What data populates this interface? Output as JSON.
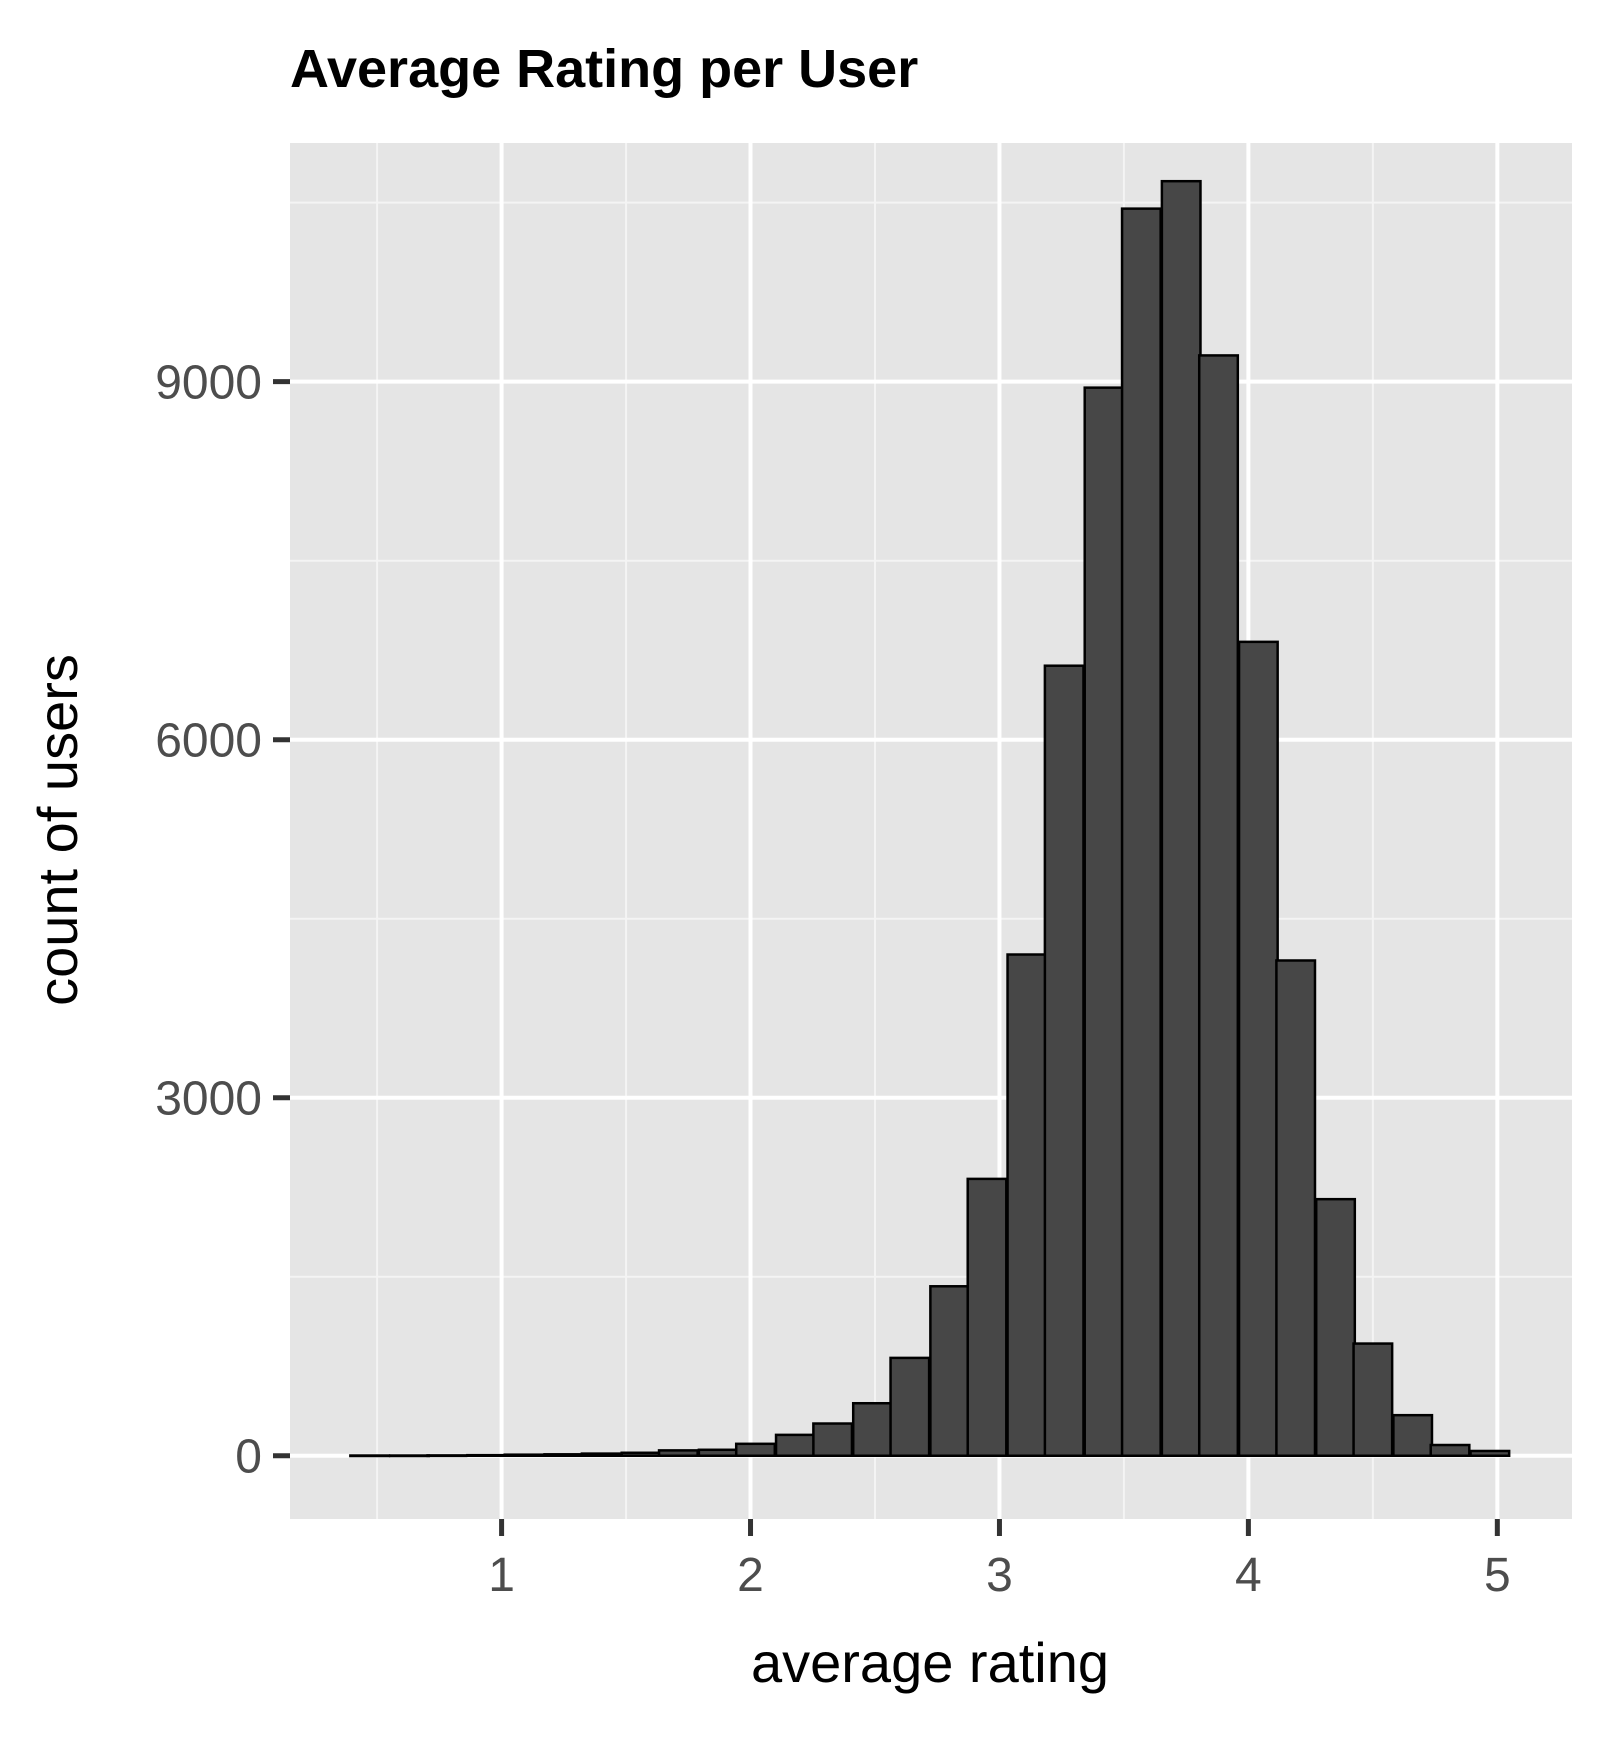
{
  "chart_data": {
    "type": "bar",
    "title": "Average Rating per User",
    "xlabel": "average rating",
    "ylabel": "count of users",
    "xlim": [
      0.15,
      5.3
    ],
    "ylim": [
      -530,
      11000
    ],
    "x_ticks": [
      1,
      2,
      3,
      4,
      5
    ],
    "x_tick_labels": [
      "1",
      "2",
      "3",
      "4",
      "5"
    ],
    "y_ticks": [
      0,
      3000,
      6000,
      9000
    ],
    "y_tick_labels": [
      "0",
      "3000",
      "6000",
      "9000"
    ],
    "x_minor_gridlines": [
      0.5,
      1.5,
      2.5,
      3.5,
      4.5
    ],
    "y_minor_gridlines": [
      1500,
      4500,
      7500,
      10500
    ],
    "grid": true,
    "legend": "none",
    "bin_width": 0.155,
    "bins": [
      {
        "x": 0.47,
        "count": 2
      },
      {
        "x": 0.63,
        "count": 2
      },
      {
        "x": 0.78,
        "count": 3
      },
      {
        "x": 0.94,
        "count": 5
      },
      {
        "x": 1.09,
        "count": 9
      },
      {
        "x": 1.25,
        "count": 12
      },
      {
        "x": 1.4,
        "count": 18
      },
      {
        "x": 1.56,
        "count": 25
      },
      {
        "x": 1.71,
        "count": 45
      },
      {
        "x": 1.87,
        "count": 50
      },
      {
        "x": 2.02,
        "count": 100
      },
      {
        "x": 2.18,
        "count": 175
      },
      {
        "x": 2.33,
        "count": 270
      },
      {
        "x": 2.49,
        "count": 440
      },
      {
        "x": 2.64,
        "count": 820
      },
      {
        "x": 2.8,
        "count": 1420
      },
      {
        "x": 2.95,
        "count": 2320
      },
      {
        "x": 3.11,
        "count": 4200
      },
      {
        "x": 3.26,
        "count": 6620
      },
      {
        "x": 3.42,
        "count": 8950
      },
      {
        "x": 3.57,
        "count": 10450
      },
      {
        "x": 3.73,
        "count": 10680
      },
      {
        "x": 3.88,
        "count": 9220
      },
      {
        "x": 4.04,
        "count": 6820
      },
      {
        "x": 4.19,
        "count": 4150
      },
      {
        "x": 4.35,
        "count": 2150
      },
      {
        "x": 4.5,
        "count": 940
      },
      {
        "x": 4.66,
        "count": 340
      },
      {
        "x": 4.81,
        "count": 90
      },
      {
        "x": 4.97,
        "count": 40
      }
    ]
  },
  "colors": {
    "panel_background": "#e5e5e5",
    "grid_major": "#ffffff",
    "grid_minor": "#f4f4f4",
    "bar_fill": "#474747",
    "bar_outline": "#000000",
    "tick_label": "#4d4d4d",
    "axis_tick": "#333333"
  }
}
